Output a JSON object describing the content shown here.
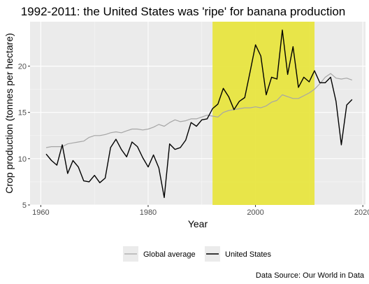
{
  "chart_data": {
    "type": "line",
    "title": "1992-2011: the United States was 'ripe' for banana production",
    "xlabel": "Year",
    "ylabel": "Crop production (tonnes per hectare)",
    "caption": "Data Source: Our World in Data",
    "xlim": [
      1958,
      2020.5
    ],
    "ylim": [
      5,
      24.8
    ],
    "xticks": [
      1960,
      1980,
      2000,
      2020
    ],
    "yticks": [
      5,
      10,
      15,
      20
    ],
    "grid": true,
    "legend_position": "bottom",
    "highlight": {
      "x_start": 1992,
      "x_end": 2011,
      "color": "#e8e540"
    },
    "series": [
      {
        "name": "Global average",
        "color": "#a6a6a6",
        "x": [
          1961,
          1962,
          1963,
          1964,
          1965,
          1966,
          1967,
          1968,
          1969,
          1970,
          1971,
          1972,
          1973,
          1974,
          1975,
          1976,
          1977,
          1978,
          1979,
          1980,
          1981,
          1982,
          1983,
          1984,
          1985,
          1986,
          1987,
          1988,
          1989,
          1990,
          1991,
          1992,
          1993,
          1994,
          1995,
          1996,
          1997,
          1998,
          1999,
          2000,
          2001,
          2002,
          2003,
          2004,
          2005,
          2006,
          2007,
          2008,
          2009,
          2010,
          2011,
          2012,
          2013,
          2014,
          2015,
          2016,
          2017,
          2018
        ],
        "values": [
          11.2,
          11.3,
          11.3,
          11.3,
          11.6,
          11.7,
          11.8,
          11.9,
          12.3,
          12.5,
          12.5,
          12.6,
          12.8,
          12.9,
          12.8,
          13.0,
          13.2,
          13.2,
          13.1,
          13.2,
          13.4,
          13.7,
          13.5,
          13.9,
          14.2,
          14.0,
          14.1,
          14.3,
          14.3,
          14.5,
          14.7,
          14.6,
          14.5,
          15.0,
          15.2,
          15.3,
          15.4,
          15.5,
          15.5,
          15.6,
          15.5,
          15.7,
          16.1,
          16.3,
          16.9,
          16.7,
          16.5,
          16.5,
          16.8,
          17.1,
          17.5,
          18.1,
          18.8,
          19.2,
          18.7,
          18.6,
          18.7,
          18.5
        ]
      },
      {
        "name": "United States",
        "color": "#000000",
        "x": [
          1961,
          1962,
          1963,
          1964,
          1965,
          1966,
          1967,
          1968,
          1969,
          1970,
          1971,
          1972,
          1973,
          1974,
          1975,
          1976,
          1977,
          1978,
          1979,
          1980,
          1981,
          1982,
          1983,
          1984,
          1985,
          1986,
          1987,
          1988,
          1989,
          1990,
          1991,
          1992,
          1993,
          1994,
          1995,
          1996,
          1997,
          1998,
          1999,
          2000,
          2001,
          2002,
          2003,
          2004,
          2005,
          2006,
          2007,
          2008,
          2009,
          2010,
          2011,
          2012,
          2013,
          2014,
          2015,
          2016,
          2017,
          2018
        ],
        "values": [
          10.5,
          9.8,
          9.3,
          11.5,
          8.4,
          9.8,
          9.1,
          7.6,
          7.5,
          8.2,
          7.4,
          7.9,
          11.2,
          12.1,
          11.0,
          10.2,
          11.8,
          11.3,
          10.1,
          9.1,
          10.4,
          9.0,
          5.8,
          11.6,
          11.0,
          11.2,
          12.0,
          13.9,
          13.5,
          14.2,
          14.3,
          15.4,
          15.9,
          17.6,
          16.7,
          15.3,
          16.2,
          16.6,
          19.4,
          22.3,
          21.1,
          16.9,
          18.8,
          18.6,
          23.9,
          19.1,
          22.1,
          17.7,
          18.8,
          18.3,
          19.5,
          18.2,
          18.2,
          18.8,
          16.2,
          11.5,
          15.8,
          16.4
        ]
      }
    ]
  }
}
